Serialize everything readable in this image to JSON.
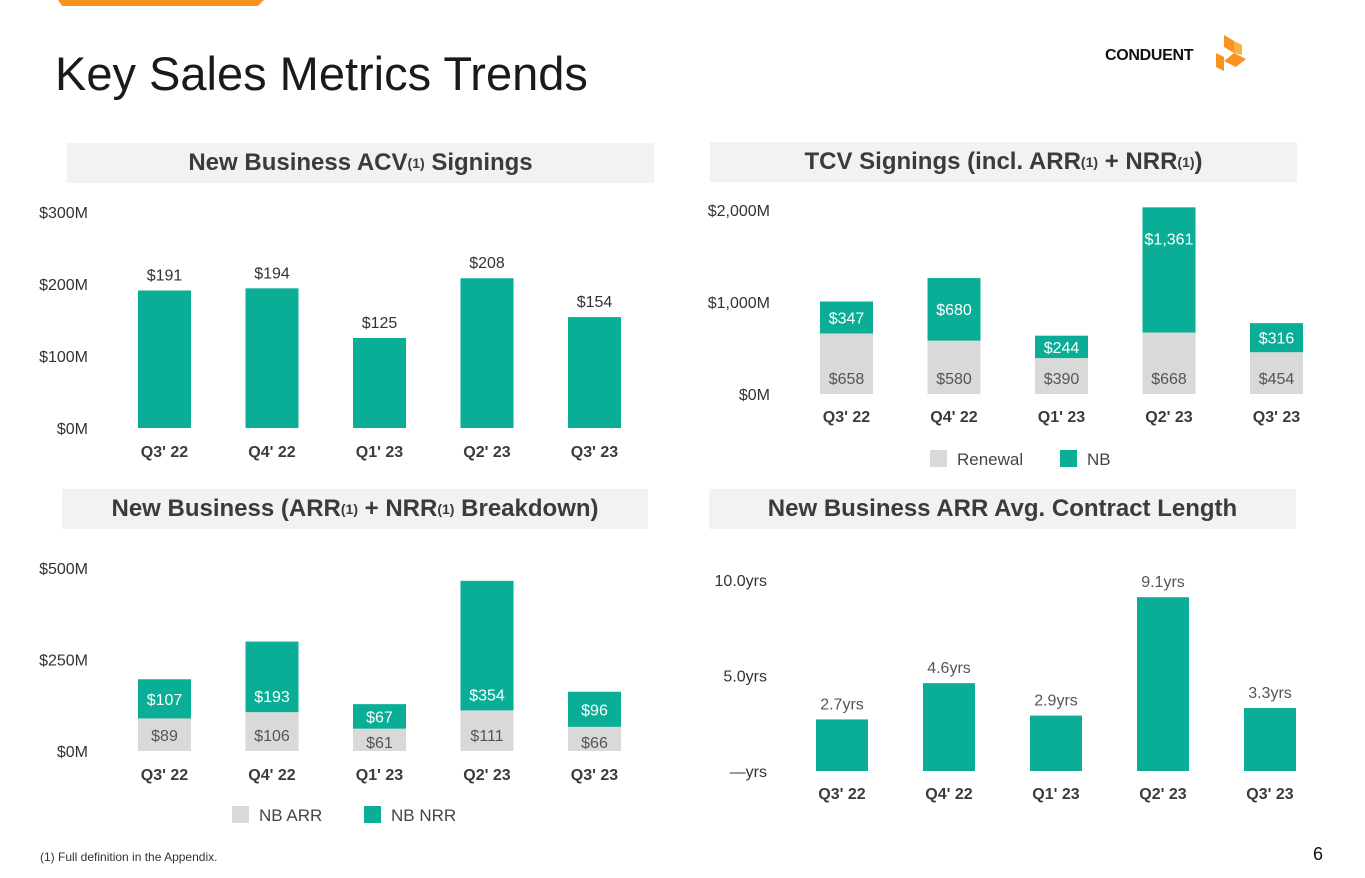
{
  "title": "Key Sales Metrics Trends",
  "logo": {
    "text": "CONDUENT",
    "icon": "conduent-logo-icon"
  },
  "colors": {
    "teal": "#0aae96",
    "grey": "#d9d9d9",
    "orange": "#f7931e",
    "dark": "#3b3b3b"
  },
  "footnote": "(1) Full definition in the Appendix.",
  "page_number": "6",
  "panels": {
    "acv": {
      "title": "New Business ACV",
      "sup": "(1)",
      "title_end": " Signings"
    },
    "tcv": {
      "title": "TCV Signings (incl. ARR",
      "sup1": "(1)",
      "mid": " + NRR",
      "sup2": "(1)",
      "end": ")"
    },
    "arr": {
      "title": "New Business (ARR",
      "sup1": "(1)",
      "mid": " + NRR",
      "sup2": "(1)",
      "end": " Breakdown)"
    },
    "len": {
      "title": "New Business ARR Avg. Contract Length"
    }
  },
  "chart_data": [
    {
      "id": "acv",
      "type": "bar",
      "title": "New Business ACV(1) Signings",
      "categories": [
        "Q3' 22",
        "Q4' 22",
        "Q1' 23",
        "Q2' 23",
        "Q3' 23"
      ],
      "values": [
        191,
        194,
        125,
        208,
        154
      ],
      "labels": [
        "$191",
        "$194",
        "$125",
        "$208",
        "$154"
      ],
      "yticks": [
        0,
        100,
        200,
        300
      ],
      "yticklabels": [
        "$0M",
        "$100M",
        "$200M",
        "$300M"
      ],
      "ylim": [
        0,
        300
      ]
    },
    {
      "id": "tcv",
      "type": "bar",
      "stacked": true,
      "title": "TCV Signings (incl. ARR(1) + NRR(1))",
      "categories": [
        "Q3' 22",
        "Q4' 22",
        "Q1' 23",
        "Q2' 23",
        "Q3' 23"
      ],
      "series": [
        {
          "name": "Renewal",
          "color": "#d9d9d9",
          "values": [
            658,
            580,
            390,
            668,
            454
          ],
          "labels": [
            "$658",
            "$580",
            "$390",
            "$668",
            "$454"
          ]
        },
        {
          "name": "NB",
          "color": "#0aae96",
          "values": [
            347,
            680,
            244,
            1361,
            316
          ],
          "labels": [
            "$347",
            "$680",
            "$244",
            "$1,361",
            "$316"
          ]
        }
      ],
      "yticks": [
        0,
        1000,
        2000
      ],
      "yticklabels": [
        "$0M",
        "$1,000M",
        "$2,000M"
      ],
      "ylim": [
        0,
        2000
      ],
      "legend": [
        "Renewal",
        "NB"
      ]
    },
    {
      "id": "arr",
      "type": "bar",
      "stacked": true,
      "title": "New Business (ARR(1) + NRR(1) Breakdown)",
      "categories": [
        "Q3' 22",
        "Q4' 22",
        "Q1' 23",
        "Q2' 23",
        "Q3' 23"
      ],
      "series": [
        {
          "name": "NB ARR",
          "color": "#d9d9d9",
          "values": [
            89,
            106,
            61,
            111,
            66
          ],
          "labels": [
            "$89",
            "$106",
            "$61",
            "$111",
            "$66"
          ]
        },
        {
          "name": "NB NRR",
          "color": "#0aae96",
          "values": [
            107,
            193,
            67,
            354,
            96
          ],
          "labels": [
            "$107",
            "$193",
            "$67",
            "$354",
            "$96"
          ]
        }
      ],
      "yticks": [
        0,
        250,
        500
      ],
      "yticklabels": [
        "$0M",
        "$250M",
        "$500M"
      ],
      "ylim": [
        0,
        500
      ],
      "legend": [
        "NB ARR",
        "NB NRR"
      ]
    },
    {
      "id": "len",
      "type": "bar",
      "title": "New Business ARR Avg. Contract Length",
      "categories": [
        "Q3' 22",
        "Q4' 22",
        "Q1' 23",
        "Q2' 23",
        "Q3' 23"
      ],
      "values": [
        2.7,
        4.6,
        2.9,
        9.1,
        3.3
      ],
      "labels": [
        "2.7yrs",
        "4.6yrs",
        "2.9yrs",
        "9.1yrs",
        "3.3yrs"
      ],
      "yticks": [
        0,
        5,
        10
      ],
      "yticklabels": [
        "—yrs",
        "5.0yrs",
        "10.0yrs"
      ],
      "ylim": [
        0,
        10
      ]
    }
  ]
}
